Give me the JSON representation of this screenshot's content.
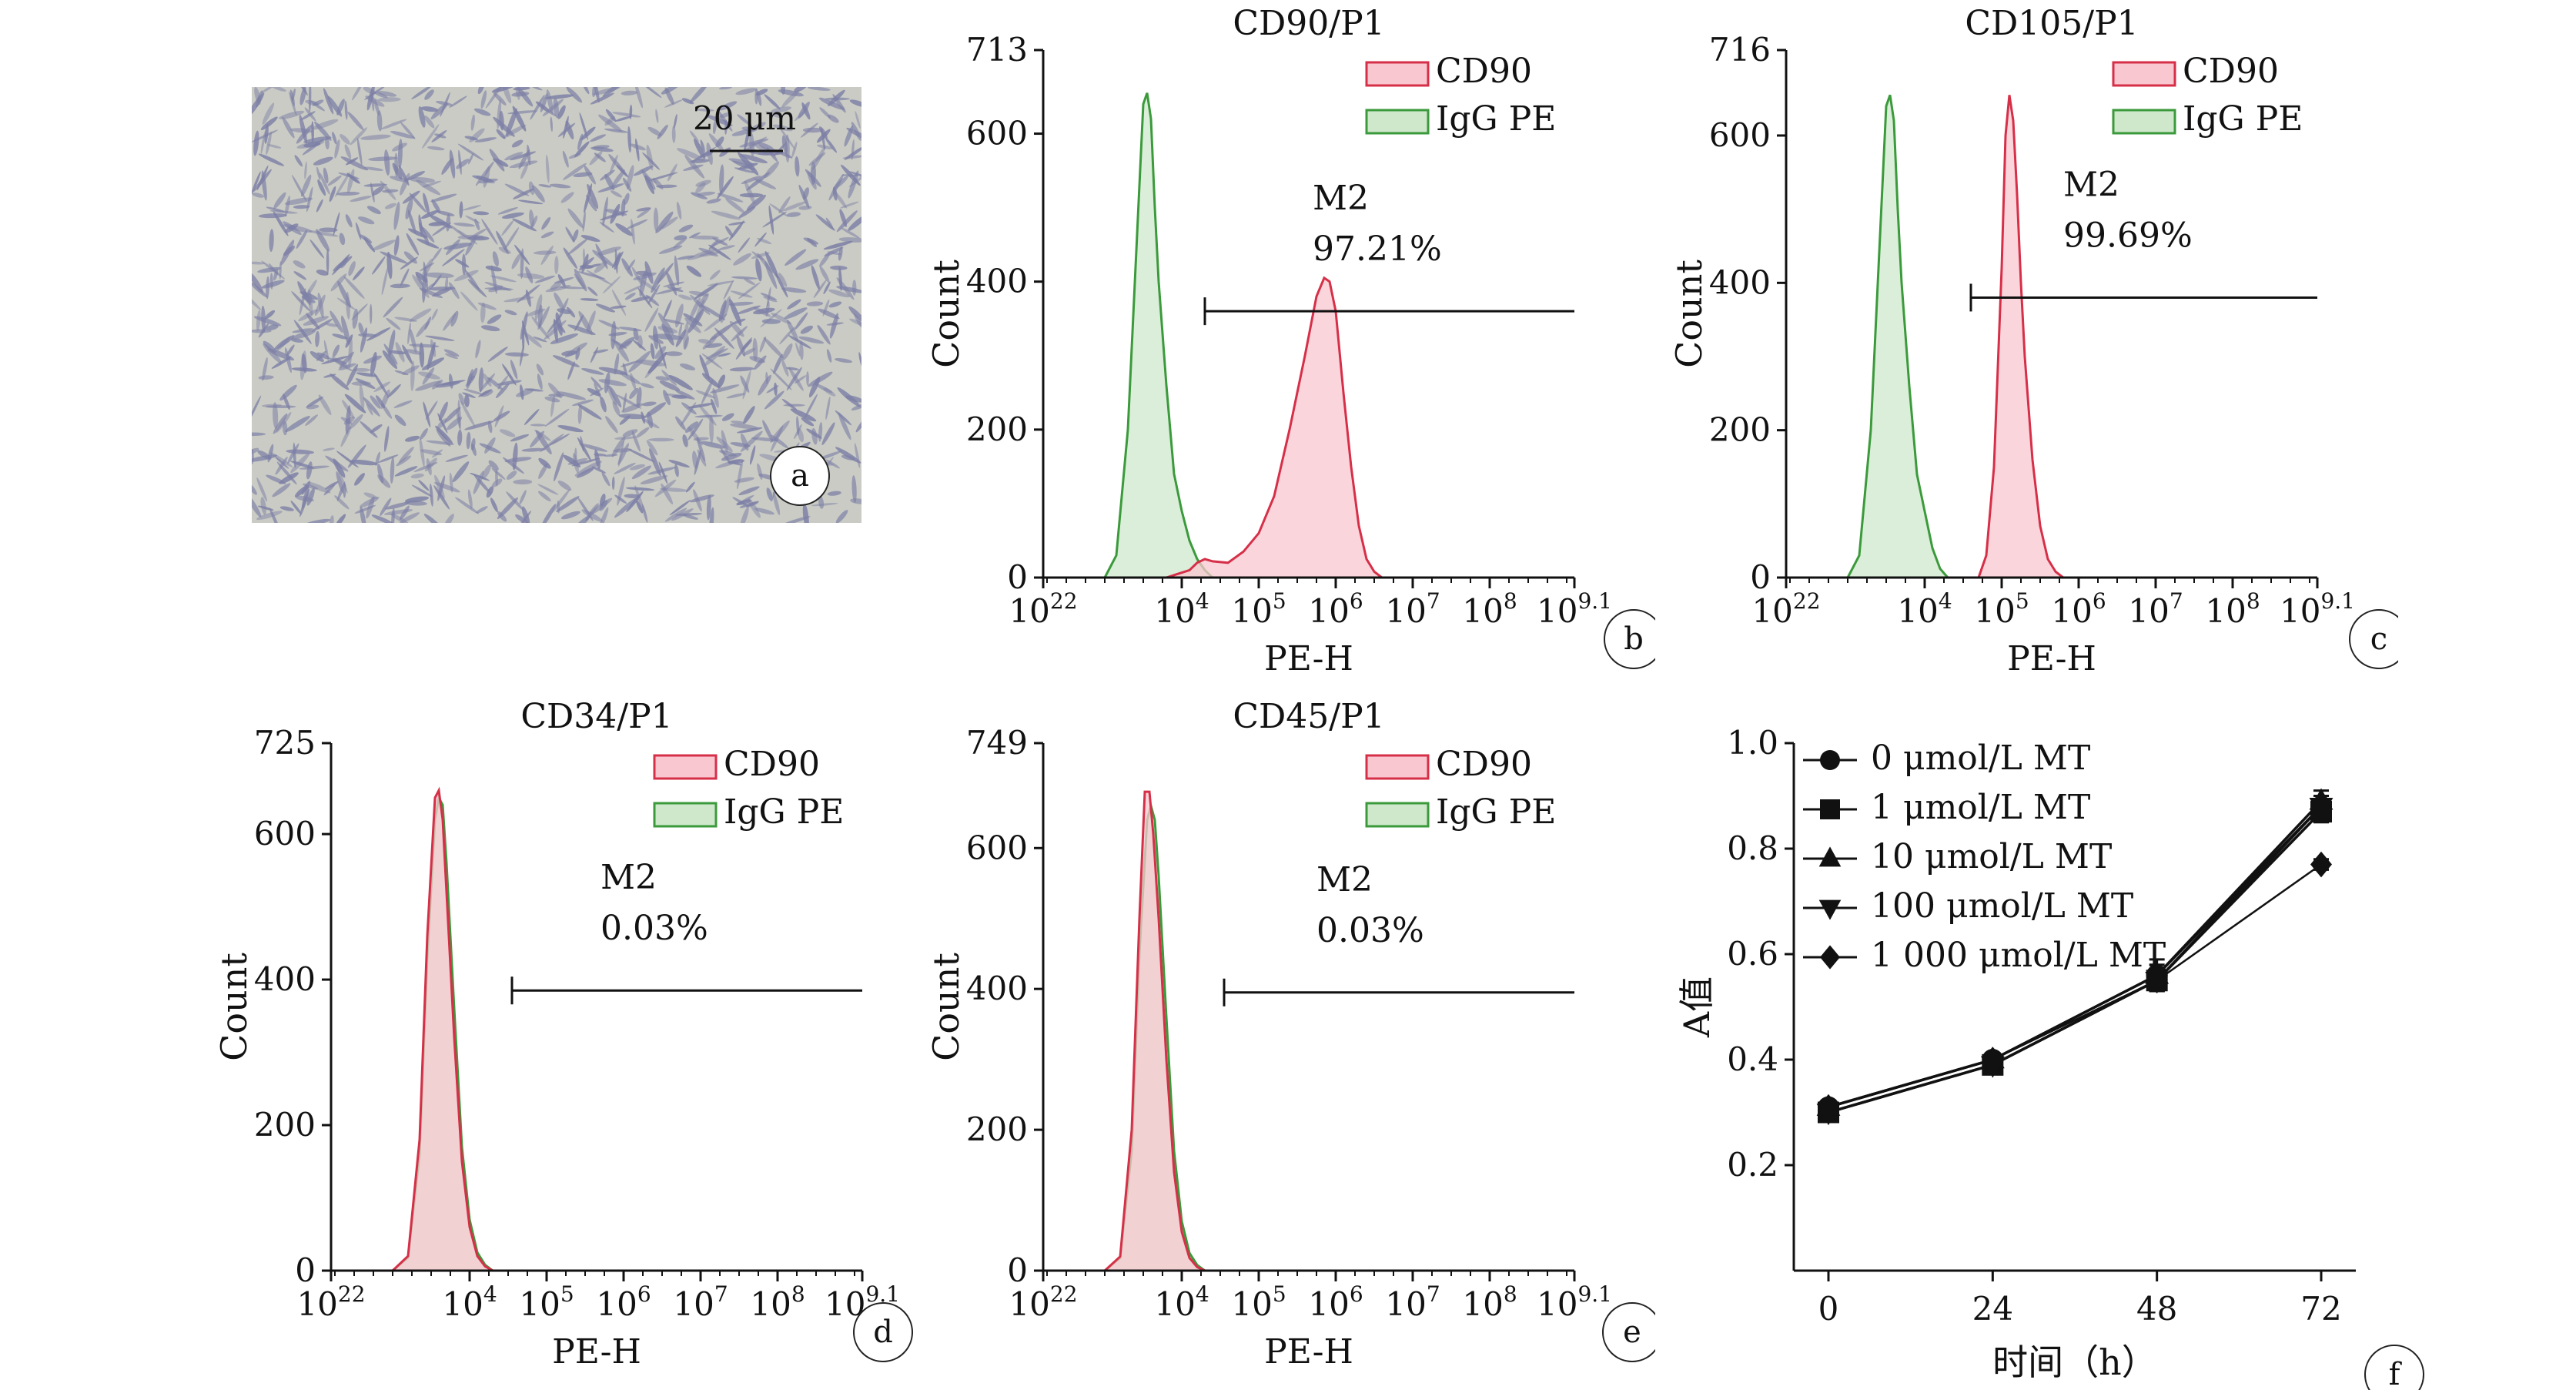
{
  "figure": {
    "panel_a": {
      "letter": "a",
      "scale_bar_label": "20 μm",
      "colors": {
        "background": "#c9cbc4",
        "cell": "#7d7fa6"
      }
    },
    "panel_letters": [
      "b",
      "c",
      "d",
      "e",
      "f"
    ]
  },
  "chart_data": [
    {
      "panel": "b",
      "type": "area",
      "title": "CD90/P1",
      "xlabel": "PE-H",
      "ylabel": "Count",
      "x_scale": "log10",
      "xlim": [
        2.2,
        9.1
      ],
      "ylim": [
        0,
        713
      ],
      "x_ticks": [
        {
          "base": "10",
          "exp": "22",
          "v": 2.2
        },
        {
          "base": "10",
          "exp": "4",
          "v": 4
        },
        {
          "base": "10",
          "exp": "5",
          "v": 5
        },
        {
          "base": "10",
          "exp": "6",
          "v": 6
        },
        {
          "base": "10",
          "exp": "7",
          "v": 7
        },
        {
          "base": "10",
          "exp": "8",
          "v": 8
        },
        {
          "base": "10",
          "exp": "9.1",
          "v": 9.1
        }
      ],
      "y_ticks": [
        0,
        200,
        400,
        600,
        713
      ],
      "legend": [
        {
          "label": "CD90",
          "stroke": "#d62f48",
          "fill": "#f9c7d0"
        },
        {
          "label": "IgG PE",
          "stroke": "#3b9a3b",
          "fill": "#cfe8cc"
        }
      ],
      "series": [
        {
          "name": "CD90",
          "x": [
            3.8,
            4.1,
            4.2,
            4.3,
            4.4,
            4.6,
            4.8,
            5.0,
            5.2,
            5.4,
            5.6,
            5.75,
            5.85,
            5.92,
            6.0,
            6.1,
            6.2,
            6.3,
            6.4,
            6.5,
            6.6
          ],
          "y": [
            0,
            10,
            20,
            25,
            22,
            20,
            35,
            60,
            110,
            200,
            300,
            380,
            405,
            400,
            360,
            250,
            150,
            70,
            25,
            8,
            0
          ]
        },
        {
          "name": "IgG PE",
          "x": [
            3.0,
            3.15,
            3.3,
            3.4,
            3.5,
            3.55,
            3.6,
            3.65,
            3.7,
            3.75,
            3.8,
            3.9,
            4.0,
            4.1,
            4.2,
            4.3,
            4.4
          ],
          "y": [
            0,
            30,
            200,
            420,
            640,
            655,
            620,
            500,
            400,
            330,
            260,
            140,
            90,
            50,
            25,
            10,
            0
          ]
        }
      ],
      "gate": {
        "label": "M2",
        "percent": "97.21%",
        "x_from": 4.3,
        "x_to": 9.1,
        "y": 360
      }
    },
    {
      "panel": "c",
      "type": "area",
      "title": "CD105/P1",
      "xlabel": "PE-H",
      "ylabel": "Count",
      "x_scale": "log10",
      "xlim": [
        2.2,
        9.1
      ],
      "ylim": [
        0,
        716
      ],
      "x_ticks": [
        {
          "base": "10",
          "exp": "22",
          "v": 2.2
        },
        {
          "base": "10",
          "exp": "4",
          "v": 4
        },
        {
          "base": "10",
          "exp": "5",
          "v": 5
        },
        {
          "base": "10",
          "exp": "6",
          "v": 6
        },
        {
          "base": "10",
          "exp": "7",
          "v": 7
        },
        {
          "base": "10",
          "exp": "8",
          "v": 8
        },
        {
          "base": "10",
          "exp": "9.1",
          "v": 9.1
        }
      ],
      "y_ticks": [
        0,
        200,
        400,
        600,
        716
      ],
      "legend": [
        {
          "label": "CD90",
          "stroke": "#d62f48",
          "fill": "#f9c7d0"
        },
        {
          "label": "IgG PE",
          "stroke": "#3b9a3b",
          "fill": "#cfe8cc"
        }
      ],
      "series": [
        {
          "name": "CD90",
          "x": [
            4.7,
            4.8,
            4.9,
            5.0,
            5.05,
            5.1,
            5.15,
            5.2,
            5.25,
            5.3,
            5.4,
            5.5,
            5.6,
            5.7,
            5.8
          ],
          "y": [
            0,
            30,
            150,
            420,
            600,
            655,
            620,
            520,
            400,
            300,
            160,
            70,
            25,
            8,
            0
          ]
        },
        {
          "name": "IgG PE",
          "x": [
            3.0,
            3.15,
            3.3,
            3.4,
            3.5,
            3.55,
            3.6,
            3.65,
            3.7,
            3.75,
            3.8,
            3.9,
            4.0,
            4.1,
            4.2,
            4.3
          ],
          "y": [
            0,
            30,
            200,
            420,
            640,
            655,
            620,
            500,
            400,
            330,
            260,
            140,
            90,
            40,
            12,
            0
          ]
        }
      ],
      "gate": {
        "label": "M2",
        "percent": "99.69%",
        "x_from": 4.6,
        "x_to": 9.1,
        "y": 380
      }
    },
    {
      "panel": "d",
      "type": "area",
      "title": "CD34/P1",
      "xlabel": "PE-H",
      "ylabel": "Count",
      "x_scale": "log10",
      "xlim": [
        2.2,
        9.1
      ],
      "ylim": [
        0,
        725
      ],
      "x_ticks": [
        {
          "base": "10",
          "exp": "22",
          "v": 2.2
        },
        {
          "base": "10",
          "exp": "4",
          "v": 4
        },
        {
          "base": "10",
          "exp": "5",
          "v": 5
        },
        {
          "base": "10",
          "exp": "6",
          "v": 6
        },
        {
          "base": "10",
          "exp": "7",
          "v": 7
        },
        {
          "base": "10",
          "exp": "8",
          "v": 8
        },
        {
          "base": "10",
          "exp": "9.1",
          "v": 9.1
        }
      ],
      "y_ticks": [
        0,
        200,
        400,
        600,
        725
      ],
      "legend": [
        {
          "label": "CD90",
          "stroke": "#d62f48",
          "fill": "#f9c7d0"
        },
        {
          "label": "IgG PE",
          "stroke": "#3b9a3b",
          "fill": "#cfe8cc"
        }
      ],
      "series": [
        {
          "name": "CD90",
          "x": [
            3.0,
            3.2,
            3.35,
            3.45,
            3.55,
            3.6,
            3.65,
            3.7,
            3.8,
            3.9,
            4.0,
            4.1,
            4.2,
            4.3
          ],
          "y": [
            0,
            20,
            180,
            460,
            650,
            660,
            620,
            520,
            320,
            150,
            60,
            20,
            6,
            0
          ]
        },
        {
          "name": "IgG PE",
          "x": [
            3.0,
            3.2,
            3.35,
            3.45,
            3.55,
            3.6,
            3.65,
            3.7,
            3.8,
            3.9,
            4.0,
            4.1,
            4.2,
            4.3
          ],
          "y": [
            0,
            18,
            160,
            430,
            620,
            650,
            640,
            560,
            360,
            170,
            70,
            25,
            8,
            0
          ]
        }
      ],
      "gate": {
        "label": "M2",
        "percent": "0.03%",
        "x_from": 4.55,
        "x_to": 9.1,
        "y": 385
      }
    },
    {
      "panel": "e",
      "type": "area",
      "title": "CD45/P1",
      "xlabel": "PE-H",
      "ylabel": "Count",
      "x_scale": "log10",
      "xlim": [
        2.2,
        9.1
      ],
      "ylim": [
        0,
        749
      ],
      "x_ticks": [
        {
          "base": "10",
          "exp": "22",
          "v": 2.2
        },
        {
          "base": "10",
          "exp": "4",
          "v": 4
        },
        {
          "base": "10",
          "exp": "5",
          "v": 5
        },
        {
          "base": "10",
          "exp": "6",
          "v": 6
        },
        {
          "base": "10",
          "exp": "7",
          "v": 7
        },
        {
          "base": "10",
          "exp": "8",
          "v": 8
        },
        {
          "base": "10",
          "exp": "9.1",
          "v": 9.1
        }
      ],
      "y_ticks": [
        0,
        200,
        400,
        600,
        749
      ],
      "legend": [
        {
          "label": "CD90",
          "stroke": "#d62f48",
          "fill": "#f9c7d0"
        },
        {
          "label": "IgG PE",
          "stroke": "#3b9a3b",
          "fill": "#cfe8cc"
        }
      ],
      "series": [
        {
          "name": "CD90",
          "x": [
            3.0,
            3.2,
            3.35,
            3.45,
            3.52,
            3.58,
            3.63,
            3.7,
            3.8,
            3.9,
            4.0,
            4.1,
            4.2,
            4.3
          ],
          "y": [
            0,
            20,
            200,
            500,
            680,
            680,
            620,
            500,
            300,
            140,
            55,
            18,
            5,
            0
          ]
        },
        {
          "name": "IgG PE",
          "x": [
            3.0,
            3.2,
            3.35,
            3.45,
            3.55,
            3.6,
            3.65,
            3.7,
            3.8,
            3.9,
            4.0,
            4.1,
            4.2,
            4.3
          ],
          "y": [
            0,
            18,
            170,
            450,
            640,
            660,
            640,
            560,
            360,
            170,
            70,
            25,
            8,
            0
          ]
        }
      ],
      "gate": {
        "label": "M2",
        "percent": "0.03%",
        "x_from": 4.55,
        "x_to": 9.1,
        "y": 395
      }
    },
    {
      "panel": "f",
      "type": "line",
      "title": "",
      "xlabel": "时间（h）",
      "ylabel": "A值",
      "x": [
        0,
        24,
        48,
        72
      ],
      "x_ticks": [
        0,
        24,
        48,
        72
      ],
      "y_ticks": [
        0.2,
        0.4,
        0.6,
        0.8,
        1.0
      ],
      "y_tick_labels": [
        "0.2",
        "0.4",
        "0.6",
        "0.8",
        "1.0"
      ],
      "xlim": [
        0,
        72
      ],
      "ylim": [
        0,
        1.0
      ],
      "legend": [
        "0 μmol/L MT",
        "1 μmol/L MT",
        "10 μmol/L MT",
        "100 μmol/L MT",
        "1 000 μmol/L MT"
      ],
      "series": [
        {
          "name": "0 μmol/L MT",
          "marker": "circle",
          "values": [
            0.31,
            0.4,
            0.56,
            0.88
          ],
          "err": [
            0.01,
            0.01,
            0.02,
            0.02
          ]
        },
        {
          "name": "1 μmol/L MT",
          "marker": "square",
          "values": [
            0.3,
            0.39,
            0.55,
            0.87
          ],
          "err": [
            0.01,
            0.01,
            0.02,
            0.02
          ]
        },
        {
          "name": "10 μmol/L MT",
          "marker": "triangle-up",
          "values": [
            0.31,
            0.4,
            0.56,
            0.89
          ],
          "err": [
            0.01,
            0.01,
            0.03,
            0.02
          ]
        },
        {
          "name": "100 μmol/L MT",
          "marker": "triangle-down",
          "values": [
            0.3,
            0.39,
            0.55,
            0.88
          ],
          "err": [
            0.01,
            0.01,
            0.02,
            0.02
          ]
        },
        {
          "name": "1 000 μmol/L MT",
          "marker": "diamond",
          "values": [
            0.31,
            0.4,
            0.55,
            0.77
          ],
          "err": [
            0.01,
            0.01,
            0.02,
            0.01
          ]
        }
      ]
    }
  ]
}
